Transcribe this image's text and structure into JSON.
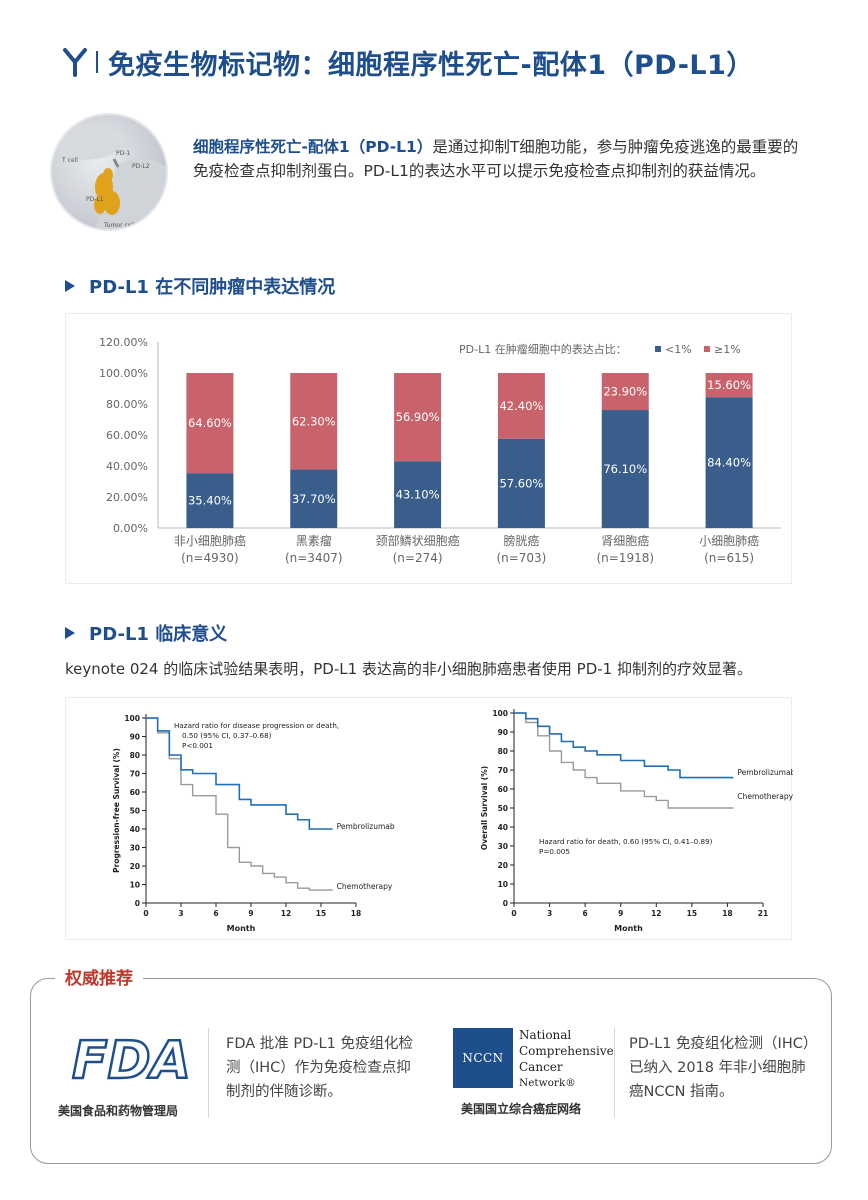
{
  "header": {
    "title": "免疫生物标记物：细胞程序性死亡-配体1（PD-L1）"
  },
  "intro": {
    "highlight": "细胞程序性死亡-配体1（PD-L1）",
    "text": "是通过抑制T细胞功能，参与肿瘤免疫逃逸的最重要的免疫检查点抑制剂蛋白。PD-L1的表达水平可以提示免疫检查点抑制剂的获益情况。",
    "figure_labels": {
      "tcell": "T cell",
      "pd1": "PD-1",
      "pdl2": "PD-L2",
      "pdl1": "PD-L1",
      "tumor": "Tumor cell"
    }
  },
  "section1": {
    "title": "PD-L1 在不同肿瘤中表达情况"
  },
  "chart_data": {
    "type": "bar",
    "stacked": true,
    "legend_title": "PD-L1 在肿瘤细胞中的表达占比：",
    "legend_placement": "top-right",
    "categories": [
      "非小细胞肺癌",
      "黑素瘤",
      "颈部鳞状细胞癌",
      "膀胱癌",
      "肾细胞癌",
      "小细胞肺癌"
    ],
    "category_counts": [
      "(n=4930)",
      "(n=3407)",
      "(n=274)",
      "(n=703)",
      "(n=1918)",
      "(n=615)"
    ],
    "series": [
      {
        "name": "<1%",
        "color": "#3a5e8c",
        "values": [
          35.4,
          37.7,
          43.1,
          57.6,
          76.1,
          84.4
        ],
        "labels": [
          "35.40%",
          "37.70%",
          "43.10%",
          "57.60%",
          "76.10%",
          "84.40%"
        ]
      },
      {
        "name": "≥1%",
        "color": "#c8636b",
        "values": [
          64.6,
          62.3,
          56.9,
          42.4,
          23.9,
          15.6
        ],
        "labels": [
          "64.60%",
          "62.30%",
          "56.90%",
          "42.40%",
          "23.90%",
          "15.60%"
        ]
      }
    ],
    "yticks": [
      "0.00%",
      "20.00%",
      "40.00%",
      "60.00%",
      "80.00%",
      "100.00%",
      "120.00%"
    ],
    "ylim": [
      0,
      120
    ],
    "grid": false
  },
  "section2": {
    "title": "PD-L1 临床意义",
    "text": "keynote 024 的临床试验结果表明，PD-L1 表达高的非小细胞肺癌患者使用 PD-1 抑制剂的疗效显著。"
  },
  "km_left": {
    "ylabel": "Progression-free Survival (%)",
    "xlabel": "Month",
    "yticks": [
      "0",
      "10",
      "20",
      "30",
      "40",
      "50",
      "60",
      "70",
      "80",
      "90",
      "100"
    ],
    "xticks": [
      "0",
      "3",
      "6",
      "9",
      "12",
      "15",
      "18"
    ],
    "annotation1": "Hazard ratio for disease progression or death,",
    "annotation2": "0.50 (95% CI, 0.37–0.68)",
    "annotation3": "P<0.001",
    "series1": "Pembrolizumab",
    "series2": "Chemotherapy",
    "pembro": [
      [
        0,
        100
      ],
      [
        1,
        93
      ],
      [
        2,
        80
      ],
      [
        3,
        72
      ],
      [
        4,
        70
      ],
      [
        6,
        64
      ],
      [
        8,
        56
      ],
      [
        9,
        53
      ],
      [
        12,
        48
      ],
      [
        13,
        45
      ],
      [
        14,
        40
      ],
      [
        16,
        40
      ]
    ],
    "chemo": [
      [
        0,
        100
      ],
      [
        1,
        92
      ],
      [
        2,
        78
      ],
      [
        3,
        64
      ],
      [
        4,
        58
      ],
      [
        6,
        48
      ],
      [
        7,
        30
      ],
      [
        8,
        22
      ],
      [
        9,
        20
      ],
      [
        10,
        16
      ],
      [
        11,
        14
      ],
      [
        12,
        11
      ],
      [
        13,
        8
      ],
      [
        14,
        7
      ],
      [
        16,
        7
      ]
    ]
  },
  "km_right": {
    "ylabel": "Overall Survival (%)",
    "xlabel": "Month",
    "yticks": [
      "0",
      "10",
      "20",
      "30",
      "40",
      "50",
      "60",
      "70",
      "80",
      "90",
      "100"
    ],
    "xticks": [
      "0",
      "3",
      "6",
      "9",
      "12",
      "15",
      "18",
      "21"
    ],
    "annotation1": "Hazard ratio for death, 0.60 (95% CI, 0.41–0.89)",
    "annotation2": "P=0.005",
    "series1": "Pembrolizumab",
    "series2": "Chemotherapy",
    "pembro": [
      [
        0,
        100
      ],
      [
        1,
        97
      ],
      [
        2,
        93
      ],
      [
        3,
        89
      ],
      [
        4,
        85
      ],
      [
        5,
        82
      ],
      [
        6,
        80
      ],
      [
        7,
        78
      ],
      [
        9,
        75
      ],
      [
        11,
        72
      ],
      [
        13,
        70
      ],
      [
        14,
        66
      ],
      [
        16,
        66
      ],
      [
        18.5,
        66
      ]
    ],
    "chemo": [
      [
        0,
        100
      ],
      [
        1,
        95
      ],
      [
        2,
        88
      ],
      [
        3,
        80
      ],
      [
        4,
        74
      ],
      [
        5,
        70
      ],
      [
        6,
        66
      ],
      [
        7,
        63
      ],
      [
        9,
        59
      ],
      [
        11,
        56
      ],
      [
        12,
        54
      ],
      [
        13,
        50
      ],
      [
        15,
        50
      ],
      [
        18.5,
        50
      ]
    ]
  },
  "authority": {
    "title": "权威推荐",
    "fda_logo": "FDA",
    "fda_caption": "美国食品和药物管理局",
    "fda_text": "FDA 批准 PD-L1 免疫组化检测（IHC）作为免疫检查点抑制剂的伴随诊断。",
    "nccn_logo": "NCCN",
    "nccn_line1": "National",
    "nccn_line2": "Comprehensive",
    "nccn_line3": "Cancer",
    "nccn_line4": "Network®",
    "nccn_caption": "美国国立综合癌症网络",
    "nccn_text": "PD-L1 免疫组化检测（IHC）已纳入 2018 年非小细胞肺癌NCCN 指南。"
  }
}
